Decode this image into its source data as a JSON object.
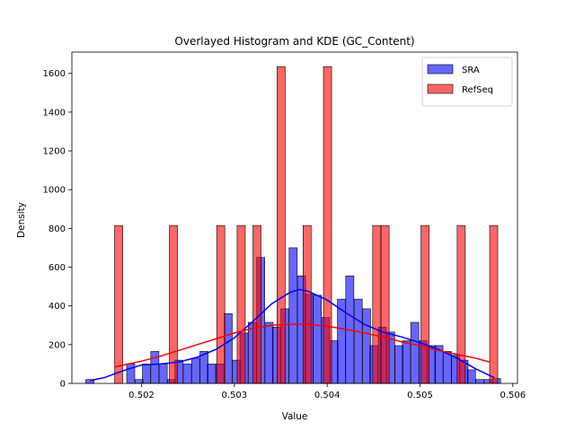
{
  "chart_data": {
    "type": "bar",
    "title": "Overlayed Histogram and KDE (GC_Content)",
    "xlabel": "Value",
    "ylabel": "Density",
    "xlim": [
      0.50125,
      0.50605
    ],
    "ylim": [
      0,
      1710
    ],
    "xticks": [
      0.502,
      0.503,
      0.504,
      0.505,
      0.506
    ],
    "xtick_labels": [
      "0.502",
      "0.503",
      "0.504",
      "0.505",
      "0.506"
    ],
    "yticks": [
      0,
      200,
      400,
      600,
      800,
      1000,
      1200,
      1400,
      1600
    ],
    "ytick_labels": [
      "0",
      "200",
      "400",
      "600",
      "800",
      "1000",
      "1200",
      "1400",
      "1600"
    ],
    "legend_position": "top-right",
    "grid": false,
    "series": [
      {
        "name": "SRA",
        "kind": "histogram",
        "color": "#0000ff",
        "bin_width": 8.75e-05,
        "bins": [
          [
            0.5014,
            20
          ],
          [
            0.50149,
            0
          ],
          [
            0.50158,
            0
          ],
          [
            0.50166,
            0
          ],
          [
            0.50175,
            0
          ],
          [
            0.50184,
            100
          ],
          [
            0.50193,
            20
          ],
          [
            0.50201,
            100
          ],
          [
            0.5021,
            165
          ],
          [
            0.50219,
            100
          ],
          [
            0.50228,
            20
          ],
          [
            0.50236,
            120
          ],
          [
            0.50245,
            100
          ],
          [
            0.50254,
            130
          ],
          [
            0.50263,
            165
          ],
          [
            0.50271,
            100
          ],
          [
            0.5028,
            100
          ],
          [
            0.50289,
            360
          ],
          [
            0.50298,
            120
          ],
          [
            0.50306,
            260
          ],
          [
            0.50315,
            315
          ],
          [
            0.50324,
            650
          ],
          [
            0.50333,
            315
          ],
          [
            0.50341,
            290
          ],
          [
            0.5035,
            385
          ],
          [
            0.50359,
            700
          ],
          [
            0.50368,
            555
          ],
          [
            0.50376,
            460
          ],
          [
            0.50385,
            455
          ],
          [
            0.50394,
            340
          ],
          [
            0.50403,
            220
          ],
          [
            0.50411,
            435
          ],
          [
            0.5042,
            555
          ],
          [
            0.50429,
            435
          ],
          [
            0.50438,
            385
          ],
          [
            0.50446,
            195
          ],
          [
            0.50455,
            290
          ],
          [
            0.50464,
            265
          ],
          [
            0.50473,
            195
          ],
          [
            0.50481,
            220
          ],
          [
            0.5049,
            315
          ],
          [
            0.50499,
            220
          ],
          [
            0.50508,
            195
          ],
          [
            0.50516,
            195
          ],
          [
            0.50525,
            165
          ],
          [
            0.50534,
            145
          ],
          [
            0.50543,
            120
          ],
          [
            0.50551,
            70
          ],
          [
            0.5056,
            20
          ],
          [
            0.50569,
            20
          ],
          [
            0.50578,
            25
          ]
        ]
      },
      {
        "name": "RefSeq",
        "kind": "histogram",
        "color": "#ff0000",
        "bin_width": 8.75e-05,
        "bins": [
          [
            0.50171,
            815
          ],
          [
            0.5023,
            815
          ],
          [
            0.50281,
            815
          ],
          [
            0.50303,
            815
          ],
          [
            0.5032,
            815
          ],
          [
            0.50346,
            1635
          ],
          [
            0.50374,
            815
          ],
          [
            0.50396,
            1635
          ],
          [
            0.50449,
            815
          ],
          [
            0.50458,
            815
          ],
          [
            0.50501,
            815
          ],
          [
            0.5054,
            815
          ],
          [
            0.50575,
            815
          ]
        ]
      },
      {
        "name": "SRA",
        "kind": "kde",
        "color": "#0000ff",
        "x": [
          0.50145,
          0.5016,
          0.5018,
          0.502,
          0.5022,
          0.5024,
          0.5026,
          0.5028,
          0.503,
          0.5032,
          0.5034,
          0.5036,
          0.5037,
          0.5038,
          0.504,
          0.5042,
          0.5044,
          0.5046,
          0.5048,
          0.505,
          0.5052,
          0.5054,
          0.5056,
          0.5058
        ],
        "y": [
          15,
          30,
          65,
          95,
          100,
          110,
          135,
          175,
          235,
          320,
          410,
          470,
          485,
          475,
          430,
          365,
          305,
          265,
          240,
          210,
          175,
          130,
          75,
          30
        ]
      },
      {
        "name": "RefSeq",
        "kind": "kde",
        "color": "#ff0000",
        "x": [
          0.50171,
          0.502,
          0.5022,
          0.5024,
          0.5026,
          0.5028,
          0.503,
          0.5032,
          0.5034,
          0.5036,
          0.5038,
          0.504,
          0.5042,
          0.5044,
          0.5046,
          0.5048,
          0.505,
          0.5052,
          0.5054,
          0.5056,
          0.50575
        ],
        "y": [
          85,
          115,
          140,
          170,
          200,
          230,
          260,
          285,
          300,
          305,
          305,
          295,
          280,
          260,
          240,
          215,
          195,
          170,
          150,
          130,
          110
        ]
      }
    ]
  }
}
